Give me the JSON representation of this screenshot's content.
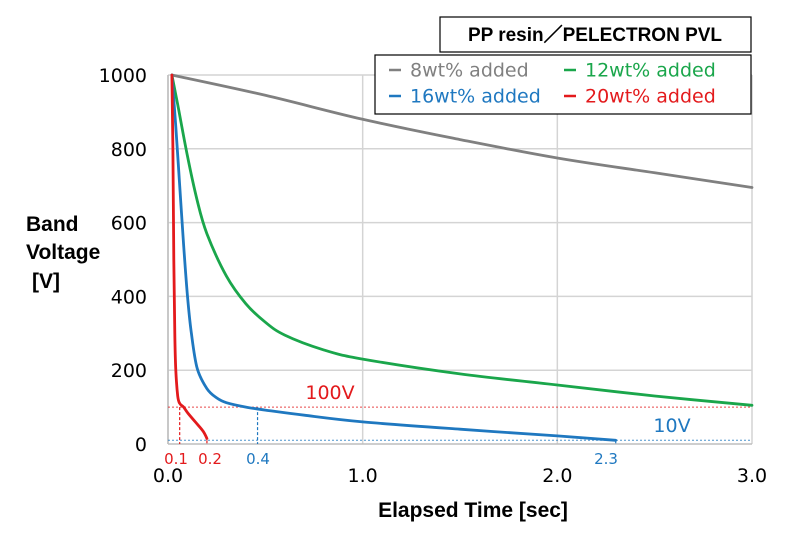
{
  "chart_data": {
    "type": "line",
    "xlabel": "Elapsed Time [sec]",
    "ylabel_lines": [
      "Band",
      "Voltage",
      "[V]"
    ],
    "xlim": [
      0,
      3.0
    ],
    "ylim": [
      0,
      1000
    ],
    "x_ticks": [
      "0.0",
      "1.0",
      "2.0",
      "3.0"
    ],
    "y_ticks": [
      "0",
      "200",
      "400",
      "600",
      "800",
      "1000"
    ],
    "grid": true,
    "legend": {
      "title": "PP resin／PELECTRON PVL",
      "placement": "top-right",
      "entries": [
        "8wt% added",
        "12wt% added",
        "16wt% added",
        "20wt% added"
      ]
    },
    "series": [
      {
        "name": "8wt% added",
        "color": "#808080",
        "x": [
          0.02,
          0.5,
          1.0,
          1.5,
          2.0,
          2.5,
          3.0
        ],
        "y": [
          1000,
          945,
          880,
          825,
          775,
          735,
          695
        ]
      },
      {
        "name": "12wt% added",
        "color": "#1aa64b",
        "x": [
          0.02,
          0.05,
          0.1,
          0.15,
          0.2,
          0.3,
          0.4,
          0.5,
          0.6,
          0.8,
          1.0,
          1.5,
          2.0,
          2.5,
          3.0
        ],
        "y": [
          1000,
          920,
          780,
          660,
          570,
          455,
          380,
          330,
          295,
          255,
          230,
          190,
          160,
          130,
          105
        ]
      },
      {
        "name": "16wt% added",
        "color": "#1f78c0",
        "x": [
          0.02,
          0.04,
          0.06,
          0.08,
          0.1,
          0.12,
          0.15,
          0.2,
          0.25,
          0.3,
          0.4,
          0.5,
          0.7,
          1.0,
          1.5,
          2.0,
          2.3
        ],
        "y": [
          1000,
          860,
          700,
          540,
          400,
          300,
          205,
          150,
          125,
          112,
          100,
          92,
          78,
          60,
          40,
          22,
          10
        ]
      },
      {
        "name": "20wt% added",
        "color": "#e31a1c",
        "x": [
          0.02,
          0.025,
          0.03,
          0.035,
          0.04,
          0.05,
          0.06,
          0.08,
          0.1,
          0.14,
          0.18,
          0.2
        ],
        "y": [
          1000,
          800,
          500,
          300,
          200,
          130,
          110,
          100,
          85,
          60,
          35,
          15
        ]
      }
    ],
    "reference_lines": [
      {
        "y": 100,
        "label": "100V",
        "color": "#e31a1c"
      },
      {
        "y": 10,
        "label": "10V",
        "color": "#1f78c0"
      }
    ],
    "x_markers": [
      {
        "x": 0.06,
        "y": 100,
        "label": "0.1",
        "color": "#e31a1c"
      },
      {
        "x": 0.2,
        "y": 10,
        "label": "0.2",
        "color": "#e31a1c"
      },
      {
        "x": 0.46,
        "y": 100,
        "label": "0.4",
        "color": "#1f78c0"
      },
      {
        "x": 2.3,
        "y": 10,
        "label": "2.3",
        "color": "#1f78c0"
      }
    ]
  }
}
